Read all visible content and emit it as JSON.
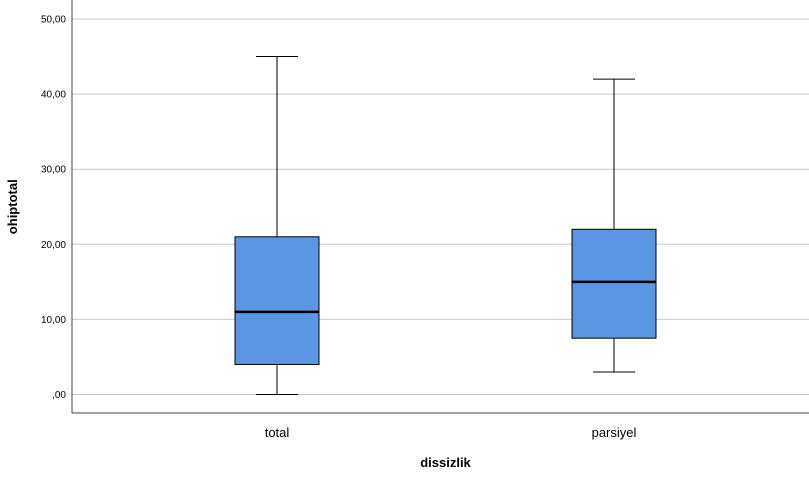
{
  "chart_data": {
    "type": "boxplot",
    "xlabel": "dissizlik",
    "ylabel": "ohiptotal",
    "ylim": [
      -2.5,
      52.5
    ],
    "yticks": [
      0,
      10,
      20,
      30,
      40,
      50
    ],
    "ytick_labels": [
      ",00",
      "10,00",
      "20,00",
      "30,00",
      "40,00",
      "50,00"
    ],
    "grid": true,
    "box_color": "#5b96e3",
    "boxes": [
      {
        "category": "total",
        "min": 0,
        "q1": 4,
        "median": 11,
        "q3": 21,
        "max": 45
      },
      {
        "category": "parsiyel",
        "min": 3,
        "q1": 7.5,
        "median": 15,
        "q3": 22,
        "max": 42
      }
    ]
  }
}
